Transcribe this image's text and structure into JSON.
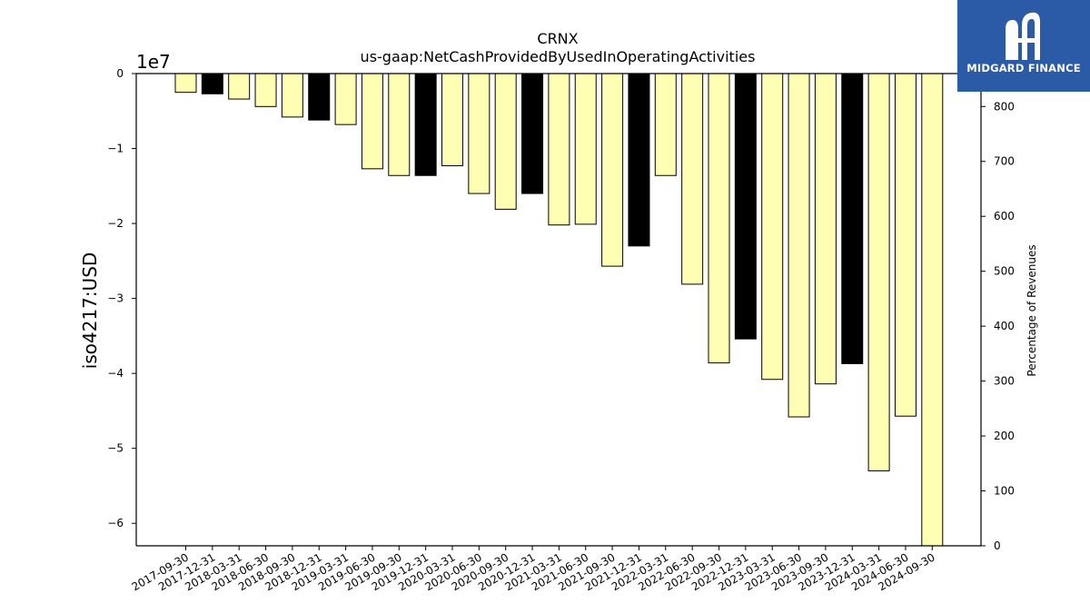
{
  "chart_data": {
    "type": "bar",
    "title": "CRNX",
    "subtitle": "us-gaap:NetCashProvidedByUsedInOperatingActivities",
    "ylabel": "iso4217:USD",
    "y_scale_label": "1e7",
    "y2label": "Percentage of Revenues",
    "ylim": [
      -6.3,
      0
    ],
    "y2lim": [
      0,
      860
    ],
    "yticks": [
      0,
      -1,
      -2,
      -3,
      -4,
      -5,
      -6
    ],
    "y2ticks": [
      0,
      100,
      200,
      300,
      400,
      500,
      600,
      700,
      800
    ],
    "categories": [
      "2017-09-30",
      "2017-12-31",
      "2018-03-31",
      "2018-06-30",
      "2018-09-30",
      "2018-12-31",
      "2019-03-31",
      "2019-06-30",
      "2019-09-30",
      "2019-12-31",
      "2020-03-31",
      "2020-06-30",
      "2020-09-30",
      "2020-12-31",
      "2021-03-31",
      "2021-06-30",
      "2021-09-30",
      "2021-12-31",
      "2022-03-31",
      "2022-06-30",
      "2022-09-30",
      "2022-12-31",
      "2023-03-31",
      "2023-06-30",
      "2023-09-30",
      "2023-12-31",
      "2024-03-31",
      "2024-06-30",
      "2024-09-30"
    ],
    "values": [
      -0.25,
      -0.27,
      -0.34,
      -0.44,
      -0.58,
      -0.62,
      -0.68,
      -1.27,
      -1.36,
      -1.36,
      -1.23,
      -1.6,
      -1.81,
      -1.6,
      -2.02,
      -2.01,
      -2.57,
      -2.3,
      -1.36,
      -2.81,
      -3.86,
      -3.54,
      -4.08,
      -4.58,
      -4.14,
      -3.87,
      -5.3,
      -4.57,
      -6.3
    ],
    "annual": [
      false,
      true,
      false,
      false,
      false,
      true,
      false,
      false,
      false,
      true,
      false,
      false,
      false,
      true,
      false,
      false,
      false,
      true,
      false,
      false,
      false,
      true,
      false,
      false,
      false,
      true,
      false,
      false,
      false
    ],
    "colors": {
      "quarterly": "#ffffb3",
      "annual": "#000000",
      "edge": "#000000"
    }
  },
  "logo": {
    "text": "MIDGARD FINANCE",
    "color": "#2b5aa6"
  }
}
